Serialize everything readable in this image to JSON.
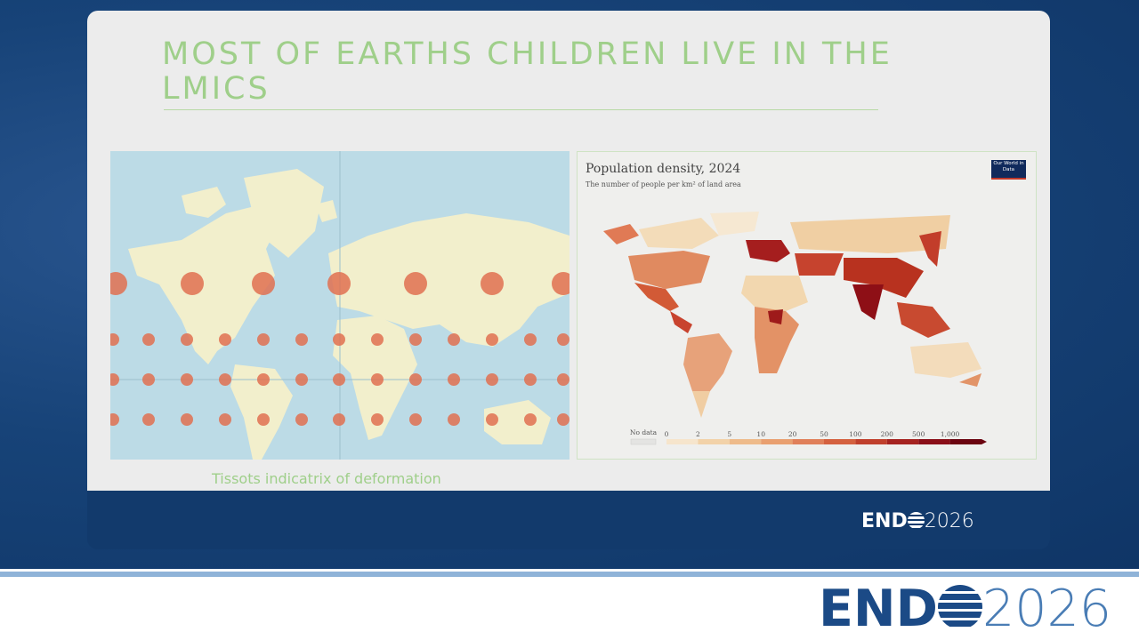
{
  "title": "MOST OF EARTHS CHILDREN LIVE IN THE LMICS",
  "caption": "Tissots indicatrix of deformation",
  "density_map": {
    "title": "Population density, 2024",
    "subtitle": "The number of people per km² of land area",
    "source_badge": "Our World in Data",
    "legend": {
      "no_data": "No data",
      "labels": [
        "0",
        "2",
        "5",
        "10",
        "20",
        "50",
        "100",
        "200",
        "500",
        "1,000"
      ]
    }
  },
  "logo": {
    "left": "END",
    "right": "2026"
  }
}
